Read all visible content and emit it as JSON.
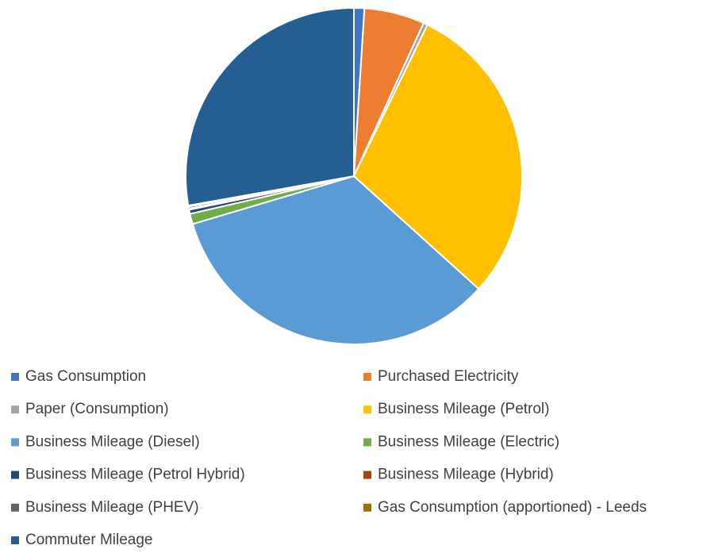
{
  "chart_data": {
    "type": "pie",
    "categories": [
      "Gas Consumption",
      "Purchased Electricity",
      "Paper (Consumption)",
      "Business Mileage (Petrol)",
      "Business Mileage (Diesel)",
      "Business Mileage (Electric)",
      "Business Mileage (Petrol Hybrid)",
      "Business Mileage (Hybrid)",
      "Business Mileage (PHEV)",
      "Gas Consumption (apportioned) - Leeds",
      "Commuter Mileage"
    ],
    "values": [
      1.0,
      5.8,
      0.4,
      29.5,
      33.7,
      1.0,
      0.4,
      0.1,
      0.2,
      0.1,
      27.8
    ],
    "colors": [
      "#4472c4",
      "#ed7d31",
      "#a5a5a5",
      "#ffc000",
      "#5b9bd5",
      "#70ad47",
      "#264478",
      "#9e480e",
      "#636363",
      "#997300",
      "#255e91"
    ],
    "legend": "bottom"
  }
}
